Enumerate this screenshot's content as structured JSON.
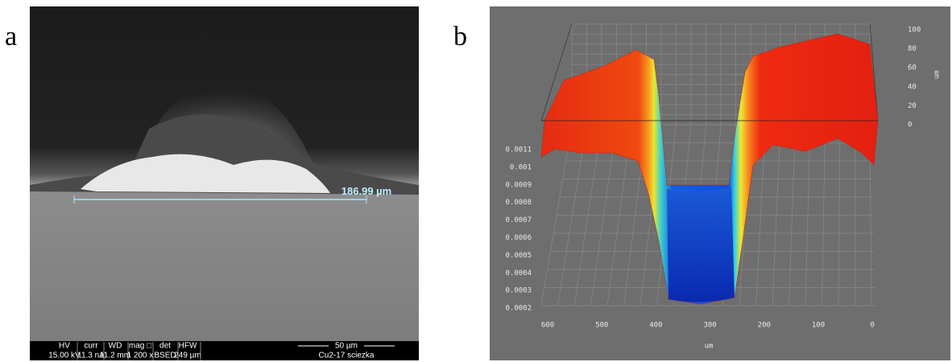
{
  "panels": [
    {
      "label": "a",
      "measurement": "186.99 µm",
      "footer": {
        "fields": [
          {
            "name": "HV",
            "value": "15.00 kV"
          },
          {
            "name": "curr",
            "value": "11.3 nA"
          },
          {
            "name": "WD",
            "value": "11.2 mm"
          },
          {
            "name": "mag □",
            "value": "1 200 x"
          },
          {
            "name": "det",
            "value": "BSED"
          },
          {
            "name": "HFW",
            "value": "249 µm"
          }
        ],
        "scale": "50 µm",
        "sample": "Cu2-17 sciezka"
      }
    },
    {
      "label": "b",
      "z_ticks": [
        "0.0011",
        "0.001",
        "0.0009",
        "0.0008",
        "0.0007",
        "0.0006",
        "0.0005",
        "0.0004",
        "0.0003",
        "0.0002"
      ],
      "x_ticks": [
        "600",
        "500",
        "400",
        "300",
        "200",
        "100",
        "0"
      ],
      "y_ticks": [
        "100",
        "80",
        "60",
        "40",
        "20",
        "0"
      ],
      "x_unit": "um",
      "y_unit": "um"
    }
  ]
}
